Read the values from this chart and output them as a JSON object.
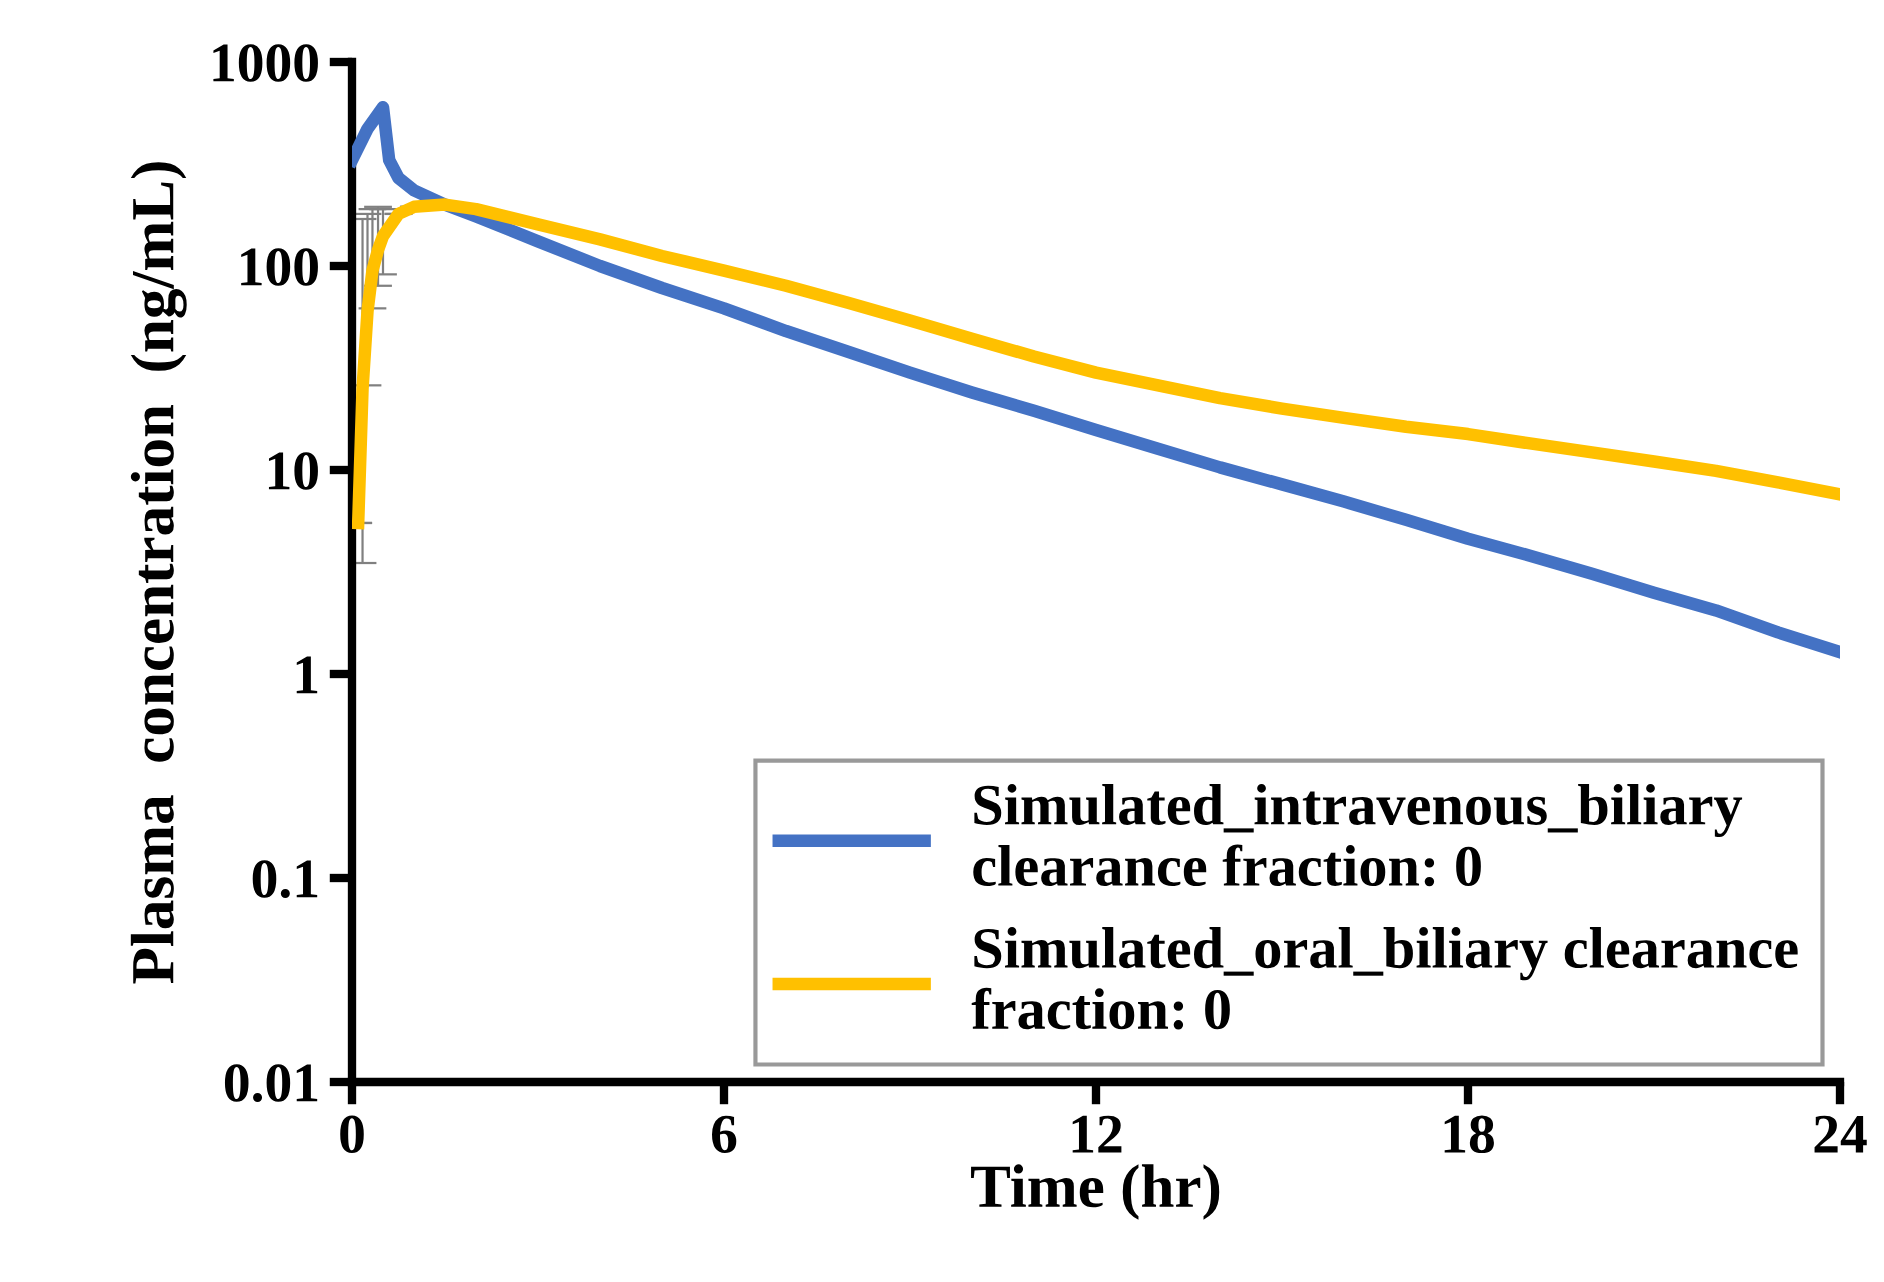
{
  "chart_data": {
    "type": "line",
    "xlabel": "Time (hr)",
    "ylabel": "Plasma  concentration  (ng/mL)",
    "log": "y",
    "xlim": [
      0,
      24
    ],
    "xticks": [
      0,
      6,
      12,
      18,
      24
    ],
    "ylim": [
      0.01,
      1000
    ],
    "yticks": [
      0.01,
      0.1,
      1,
      10,
      100,
      1000
    ],
    "grid": false,
    "legend": "bottom right",
    "marker": "none",
    "line_style": "solid",
    "series": [
      {
        "name": "Simulated_intravenous_biliary\nclearance fraction: 0",
        "color": "#4472c4",
        "x": [
          0,
          0.25,
          0.5,
          0.6,
          0.75,
          1,
          1.5,
          2,
          3,
          4,
          5,
          6,
          7,
          8,
          9,
          10,
          11,
          12,
          13,
          14,
          15,
          16,
          17,
          18,
          19,
          20,
          21,
          22,
          23,
          24
        ],
        "values": [
          330,
          470,
          600,
          330,
          270,
          235,
          200,
          175,
          132,
          100,
          78,
          62,
          48,
          38,
          30,
          24,
          19.5,
          15.7,
          12.7,
          10.3,
          8.5,
          7,
          5.7,
          4.6,
          3.8,
          3.1,
          2.5,
          2.05,
          1.6,
          1.28
        ]
      },
      {
        "name": "Simulated_oral_biliary clearance\nfraction: 0",
        "color": "#ffc000",
        "x": [
          0.1,
          0.17,
          0.25,
          0.33,
          0.42,
          0.5,
          0.75,
          1,
          1.5,
          2,
          3,
          4,
          5,
          6,
          7,
          8,
          9,
          10,
          11,
          12,
          13,
          14,
          15,
          16,
          17,
          18,
          19,
          20,
          21,
          22,
          23,
          24
        ],
        "values": [
          5.5,
          25,
          60,
          95,
          120,
          140,
          180,
          195,
          200,
          190,
          160,
          135,
          112,
          95,
          80,
          66,
          54,
          44,
          36,
          30,
          26,
          22.5,
          20,
          18,
          16.3,
          15,
          13.5,
          12.2,
          11,
          9.9,
          8.7,
          7.6
        ],
        "errors": [
          null,
          [
            3.5,
            170
          ],
          [
            26,
            180
          ],
          [
            62,
            190
          ],
          [
            80,
            195
          ],
          [
            91,
            190
          ],
          null,
          null,
          null,
          null,
          null,
          null,
          null,
          null,
          null,
          null,
          null,
          null,
          null,
          null,
          null,
          null,
          null,
          null,
          null,
          null,
          null,
          null,
          null,
          null,
          null,
          null
        ]
      }
    ]
  }
}
